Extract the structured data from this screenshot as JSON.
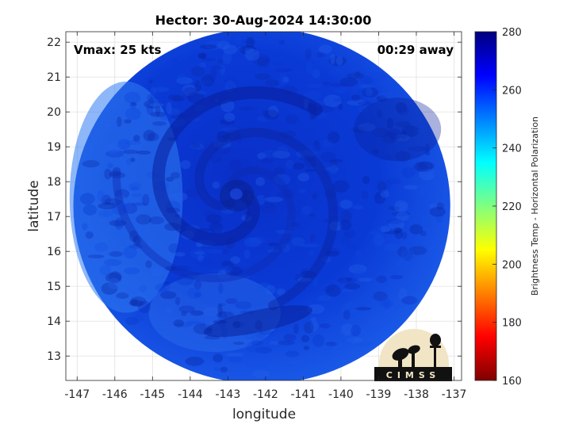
{
  "chart_data": {
    "type": "heatmap",
    "title": "Hector: 30-Aug-2024 14:30:00",
    "xlabel": "longitude",
    "ylabel": "latitude",
    "xlim": [
      -147.3,
      -136.8
    ],
    "ylim": [
      12.3,
      22.3
    ],
    "xticks": [
      -147,
      -146,
      -145,
      -144,
      -143,
      -142,
      -141,
      -140,
      -139,
      -138,
      -137
    ],
    "yticks": [
      13,
      14,
      15,
      16,
      17,
      18,
      19,
      20,
      21,
      22
    ],
    "grid": true,
    "annotations": {
      "vmax": "Vmax: 25 kts",
      "time_offset": "00:29 away"
    },
    "colorbar": {
      "label": "Brightness Temp - Horizontal Polarization",
      "ticks": [
        160,
        180,
        200,
        220,
        240,
        260,
        280
      ],
      "range": [
        160,
        280
      ],
      "colormap": "jet",
      "colors": [
        "#7f0000",
        "#ff0000",
        "#ff8000",
        "#ffff00",
        "#80ff80",
        "#00ffff",
        "#0080ff",
        "#0000ff",
        "#00007f"
      ]
    },
    "swath": {
      "center_lon": -142.1,
      "center_lat": 17.3,
      "radius_deg_lon": 5.0,
      "radius_deg_lat": 5.1,
      "typical_value": 262,
      "storm_center": [
        -142.8,
        17.6
      ]
    },
    "logo_text": "CIMSS"
  }
}
